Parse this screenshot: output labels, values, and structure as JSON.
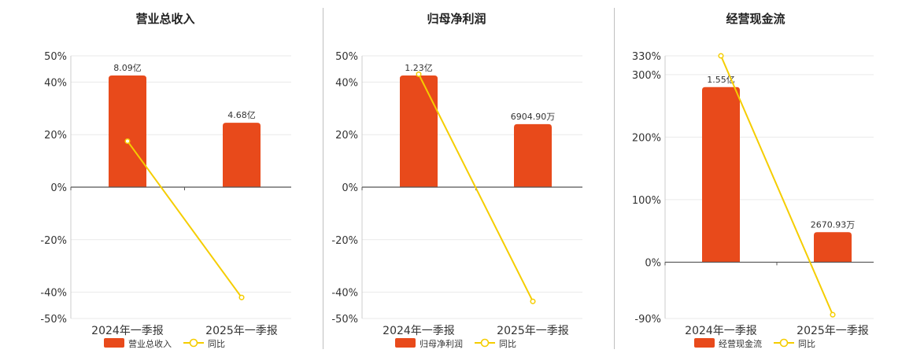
{
  "chart_data": [
    {
      "type": "bar",
      "title": "营业总收入",
      "categories": [
        "2024年一季报",
        "2025年一季报"
      ],
      "series": [
        {
          "name": "营业总收入",
          "kind": "bar",
          "values": [
            8.09,
            4.68
          ],
          "labels": [
            "8.09亿",
            "4.68亿"
          ]
        },
        {
          "name": "同比",
          "kind": "line",
          "values": [
            17.5,
            -42.0
          ]
        }
      ],
      "ylim": [
        -50,
        50
      ],
      "yticks": [
        50,
        40,
        20,
        0,
        -20,
        -40,
        -50
      ],
      "ytick_labels": [
        "50%",
        "40%",
        "20%",
        "0%",
        "-20%",
        "-40%",
        "-50%"
      ],
      "bar_heights_pct": [
        42.5,
        24.5
      ],
      "legend": [
        "营业总收入",
        "同比"
      ],
      "legend_position": "bottom",
      "grid": true
    },
    {
      "type": "bar",
      "title": "归母净利润",
      "categories": [
        "2024年一季报",
        "2025年一季报"
      ],
      "series": [
        {
          "name": "归母净利润",
          "kind": "bar",
          "values": [
            1.23,
            0.69049
          ],
          "labels": [
            "1.23亿",
            "6904.90万"
          ]
        },
        {
          "name": "同比",
          "kind": "line",
          "values": [
            43.0,
            -43.5
          ]
        }
      ],
      "ylim": [
        -50,
        50
      ],
      "yticks": [
        50,
        40,
        20,
        0,
        -20,
        -40,
        -50
      ],
      "ytick_labels": [
        "50%",
        "40%",
        "20%",
        "0%",
        "-20%",
        "-40%",
        "-50%"
      ],
      "bar_heights_pct": [
        42.5,
        24.0
      ],
      "legend": [
        "归母净利润",
        "同比"
      ],
      "legend_position": "bottom",
      "grid": true
    },
    {
      "type": "bar",
      "title": "经营现金流",
      "categories": [
        "2024年一季报",
        "2025年一季报"
      ],
      "series": [
        {
          "name": "经营现金流",
          "kind": "bar",
          "values": [
            1.55,
            0.267093
          ],
          "labels": [
            "1.55亿",
            "2670.93万"
          ]
        },
        {
          "name": "同比",
          "kind": "line",
          "values": [
            330,
            -84
          ]
        }
      ],
      "ylim": [
        -90,
        330
      ],
      "yticks": [
        330,
        300,
        200,
        100,
        0,
        -90
      ],
      "ytick_labels": [
        "330%",
        "300%",
        "200%",
        "100%",
        "0%",
        "-90%"
      ],
      "bar_heights_pct": [
        280,
        48
      ],
      "legend": [
        "经营现金流",
        "同比"
      ],
      "legend_position": "bottom",
      "grid": true
    }
  ],
  "colors": {
    "bar": "#e84a1b",
    "line": "#f5cd00",
    "axis": "#555555",
    "grid": "#e9e9e9",
    "text": "#333333"
  }
}
